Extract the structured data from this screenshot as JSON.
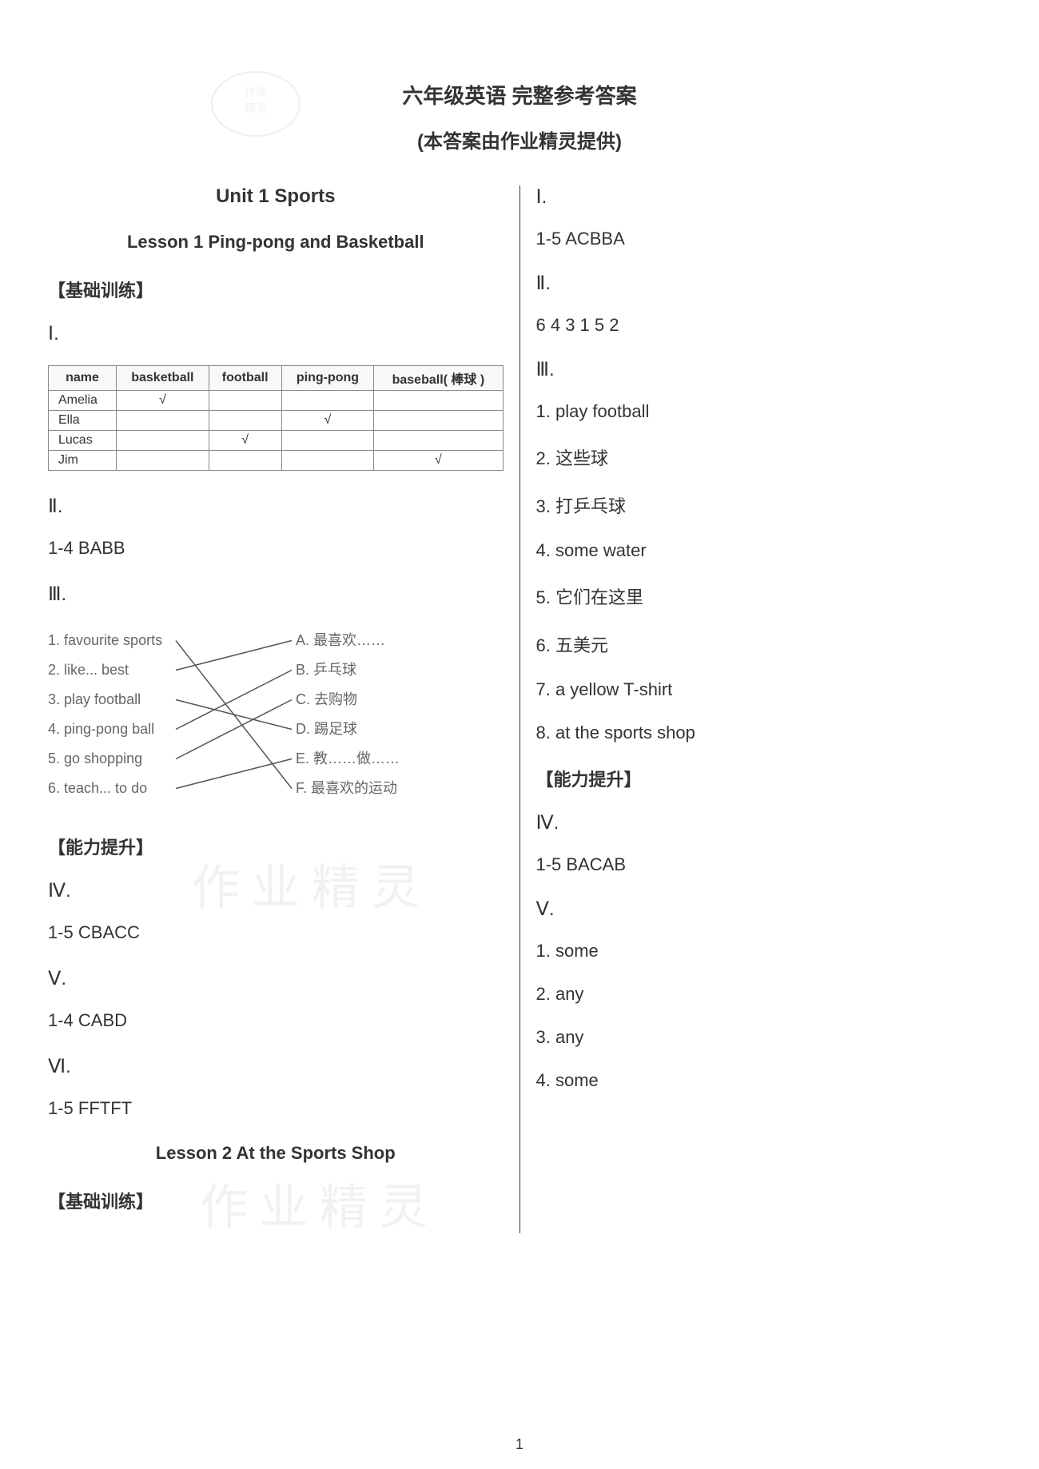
{
  "header": {
    "title": "六年级英语 完整参考答案",
    "subtitle": "(本答案由作业精灵提供)"
  },
  "left_column": {
    "unit_title": "Unit 1 Sports",
    "lesson1_title": "Lesson 1 Ping-pong and Basketball",
    "section_basic": "【基础训练】",
    "section_ability": "【能力提升】",
    "roman1": "Ⅰ.",
    "roman2": "Ⅱ.",
    "roman3": "Ⅲ.",
    "roman4": "Ⅳ.",
    "roman5": "Ⅴ.",
    "roman6": "Ⅵ.",
    "table": {
      "headers": [
        "name",
        "basketball",
        "football",
        "ping-pong",
        "baseball( 棒球 )"
      ],
      "rows": [
        [
          "Amelia",
          "√",
          "",
          "",
          ""
        ],
        [
          "Ella",
          "",
          "",
          "√",
          ""
        ],
        [
          "Lucas",
          "",
          "√",
          "",
          ""
        ],
        [
          "Jim",
          "",
          "",
          "",
          "√"
        ]
      ]
    },
    "answer_2": "1-4 BABB",
    "matching": {
      "left": [
        "1. favourite sports",
        "2. like... best",
        "3. play football",
        "4. ping-pong ball",
        "5. go shopping",
        "6. teach... to do"
      ],
      "right": [
        "A. 最喜欢……",
        "B. 乒乓球",
        "C. 去购物",
        "D. 踢足球",
        "E. 教……做……",
        "F. 最喜欢的运动"
      ],
      "connections": [
        [
          0,
          5
        ],
        [
          1,
          0
        ],
        [
          2,
          3
        ],
        [
          3,
          1
        ],
        [
          4,
          2
        ],
        [
          5,
          4
        ]
      ]
    },
    "answer_4": "1-5 CBACC",
    "answer_5": "1-4 CABD",
    "answer_6": "1-5 FFTFT",
    "lesson2_title": "Lesson 2 At the Sports Shop"
  },
  "right_column": {
    "roman1": "Ⅰ.",
    "answer_1": "1-5 ACBBA",
    "roman2": "Ⅱ.",
    "answer_2": "6 4 3 1 5 2",
    "roman3": "Ⅲ.",
    "items3": [
      "1. play football",
      "2. 这些球",
      "3. 打乒乓球",
      "4. some water",
      "5. 它们在这里",
      "6. 五美元",
      "7. a yellow T-shirt",
      "8. at the sports shop"
    ],
    "section_ability": "【能力提升】",
    "roman4": "Ⅳ.",
    "answer_4": "1-5 BACAB",
    "roman5": "Ⅴ.",
    "items5": [
      "1. some",
      "2. any",
      "3. any",
      "4. some"
    ]
  },
  "watermarks": {
    "wm1": "作 业 精 灵",
    "wm2": "作 业 精 灵"
  },
  "page_number": "1",
  "colors": {
    "text": "#333333",
    "background": "#ffffff",
    "table_border": "#888888",
    "match_text": "#666666",
    "watermark": "#dddddd"
  }
}
